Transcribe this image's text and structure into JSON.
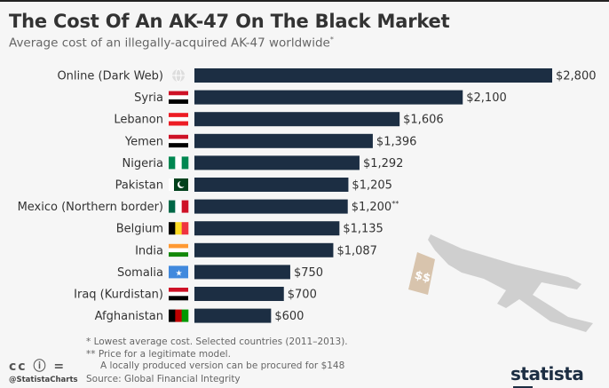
{
  "header": {
    "title": "The Cost Of An AK-47 On The Black Market",
    "subtitle": "Average cost of an illegally-acquired AK-47 worldwide",
    "subtitle_mark": "*"
  },
  "chart_data": {
    "type": "bar",
    "orientation": "horizontal",
    "title": "The Cost Of An AK-47 On The Black Market",
    "categories": [
      "Online (Dark Web)",
      "Syria",
      "Lebanon",
      "Yemen",
      "Nigeria",
      "Pakistan",
      "Mexico (Northern border)",
      "Belgium",
      "India",
      "Somalia",
      "Iraq (Kurdistan)",
      "Afghanistan"
    ],
    "values": [
      2800,
      2100,
      1606,
      1396,
      1292,
      1205,
      1200,
      1135,
      1087,
      750,
      700,
      600
    ],
    "labels": [
      "$2,800",
      "$2,100",
      "$1,606",
      "$1,396",
      "$1,292",
      "$1,205",
      "$1,200**",
      "$1,135",
      "$1,087",
      "$750",
      "$700",
      "$600"
    ],
    "flags": [
      "globe",
      "syria",
      "lebanon",
      "yemen",
      "nigeria",
      "pakistan",
      "mexico",
      "belgium",
      "india",
      "somalia",
      "iraq",
      "afghanistan"
    ],
    "xlim": [
      0,
      2800
    ],
    "bar_color": "#1c2e43",
    "unit": "USD"
  },
  "footer": {
    "note1": "*  Lowest average cost. Selected countries (2011–2013).",
    "note2": "** Price for a legitimate model.",
    "note3": "A locally produced version can be procured for $148",
    "source": "Source: Global Financial Integrity",
    "handle": "@StatistaCharts",
    "logo": "statista",
    "cc": "cc ⓘ ="
  }
}
